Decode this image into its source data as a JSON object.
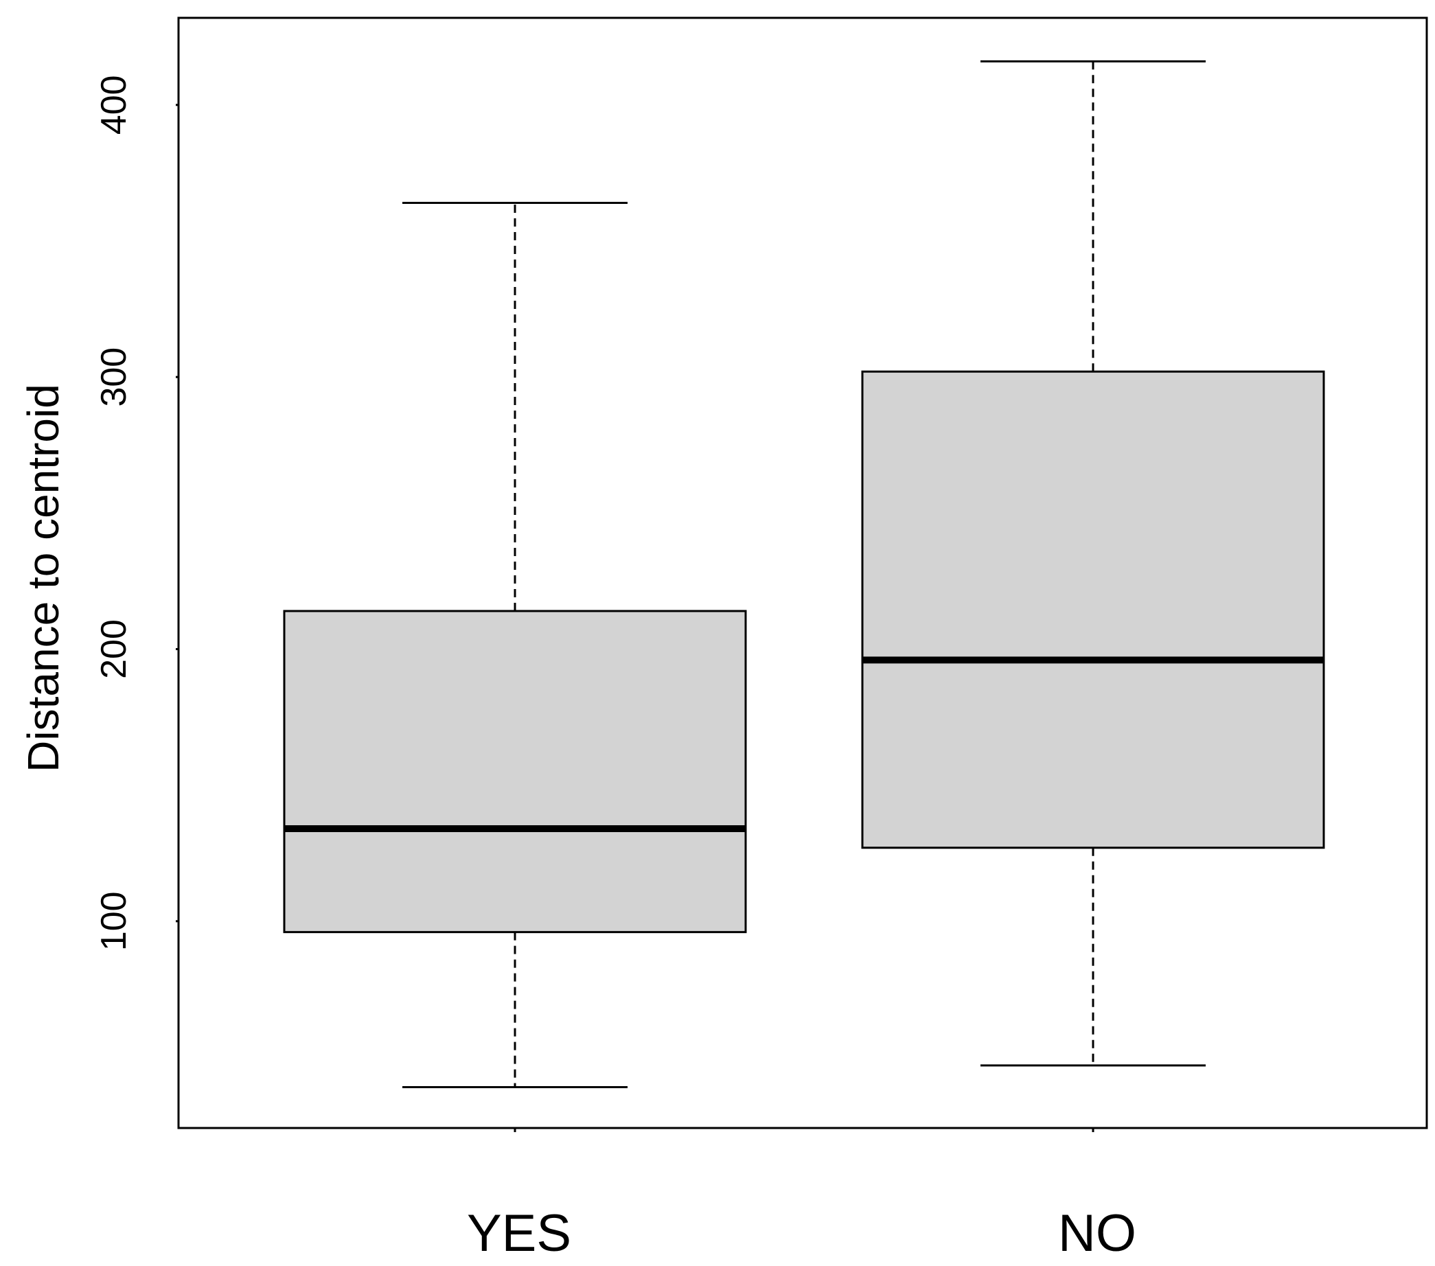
{
  "chart_data": {
    "type": "boxplot",
    "title": "",
    "xlabel": "",
    "ylabel": "Distance to centroid",
    "ylim": [
      24,
      432
    ],
    "yticks": [
      100,
      200,
      300,
      400
    ],
    "ytick_labels": [
      "100",
      "200",
      "300",
      "400"
    ],
    "grid": false,
    "legend": "none",
    "categories": [
      "YES",
      "NO"
    ],
    "boxes": [
      {
        "category": "YES",
        "whisker_low": 39,
        "q1": 96,
        "median": 134,
        "q3": 214,
        "whisker_high": 364
      },
      {
        "category": "NO",
        "whisker_low": 47,
        "q1": 127,
        "median": 196,
        "q3": 302,
        "whisker_high": 416
      }
    ],
    "colors": {
      "box_fill": "#d3d3d3",
      "box_stroke": "#000000",
      "median": "#000000",
      "whisker": "#000000",
      "frame": "#000000"
    }
  }
}
